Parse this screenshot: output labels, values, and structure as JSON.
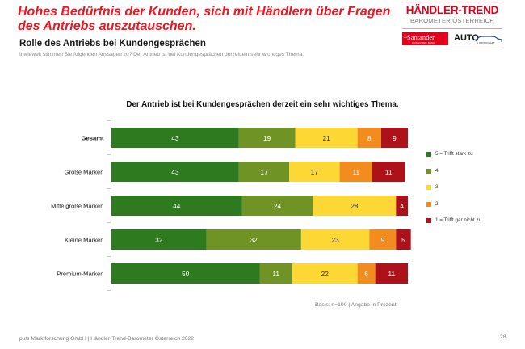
{
  "header": {
    "headline": "Hohes Bedürfnis der Kunden, sich mit Händlern über Fragen des Antriebs auszutauschen.",
    "subtitle": "Rolle des Antriebs bei Kundengesprächen",
    "question": "Inwieweit stimmen Sie folgenden Aussagen zu? Der Antrieb ist bei Kundengesprächen derzeit ein sehr wichtiges Thema."
  },
  "logo": {
    "brand": "HÄNDLER-TREND",
    "brand_sub": "BAROMETER ÖSTERREICH",
    "sponsor1": "Santander",
    "sponsor1_sub": "CONSUMER BANK",
    "sponsor2": "AUTO",
    "sponsor2_sub": "& WIRTSCHAFT",
    "brand_color": "#e2001a"
  },
  "chart_data": {
    "type": "bar",
    "orientation": "horizontal",
    "stacked": true,
    "title": "Der Antrieb ist bei Kundengesprächen derzeit ein sehr wichtiges Thema.",
    "xlabel": "",
    "ylabel": "",
    "xlim": [
      0,
      100
    ],
    "grid": false,
    "legend_position": "right",
    "categories": [
      "Gesamt",
      "Große Marken",
      "Mittelgroße Marken",
      "Kleine Marken",
      "Premium-Marken"
    ],
    "category_bold": [
      true,
      false,
      false,
      false,
      false
    ],
    "series": [
      {
        "name": "5 = Trifft stark zu",
        "color": "#2d7a1f",
        "label_color": "#ffffff",
        "values": [
          43,
          43,
          44,
          32,
          50
        ]
      },
      {
        "name": "4",
        "color": "#6f9324",
        "label_color": "#ffffff",
        "values": [
          19,
          17,
          24,
          32,
          11
        ]
      },
      {
        "name": "3",
        "color": "#fdd835",
        "label_color": "#333333",
        "values": [
          21,
          17,
          28,
          23,
          22
        ]
      },
      {
        "name": "2",
        "color": "#f28c1e",
        "label_color": "#ffffff",
        "values": [
          8,
          11,
          0,
          9,
          6
        ]
      },
      {
        "name": "1 = Trifft gar nicht zu",
        "color": "#ad1119",
        "label_color": "#ffffff",
        "values": [
          9,
          11,
          4,
          5,
          11
        ]
      }
    ]
  },
  "notes": {
    "basis": "Basis: n=100 | Angabe in Prozent"
  },
  "footer": {
    "company_italic": "puls",
    "text": " Marktforschung GmbH | Händler-Trend-Barometer Österreich 2022",
    "page_number": "28"
  }
}
